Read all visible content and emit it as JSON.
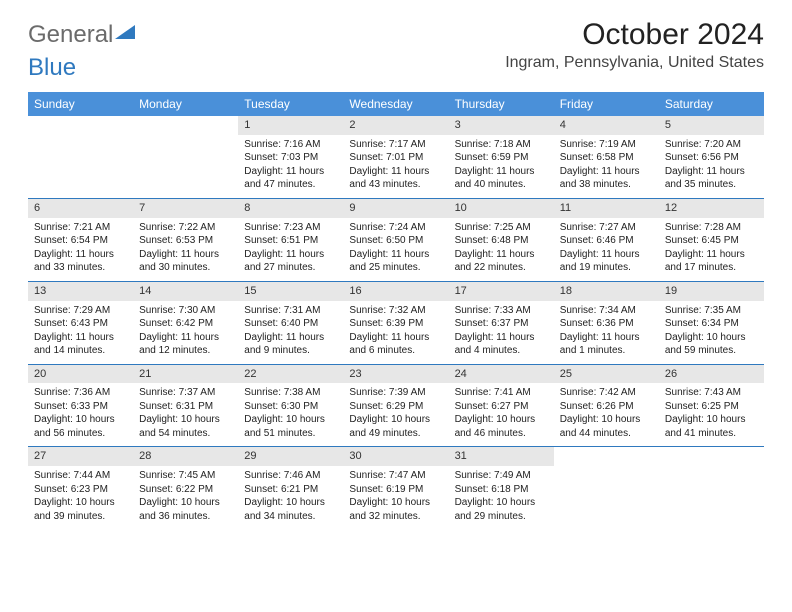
{
  "logo": {
    "part1": "General",
    "part2": "Blue"
  },
  "title": "October 2024",
  "location": "Ingram, Pennsylvania, United States",
  "colors": {
    "header_bg": "#4a90d9",
    "header_text": "#ffffff",
    "daynum_bg": "#e7e7e7",
    "week_border": "#2f79bf",
    "logo_gray": "#6b6b6b",
    "logo_blue": "#2f79bf",
    "text": "#222222",
    "background": "#ffffff"
  },
  "day_names": [
    "Sunday",
    "Monday",
    "Tuesday",
    "Wednesday",
    "Thursday",
    "Friday",
    "Saturday"
  ],
  "weeks": [
    [
      null,
      null,
      {
        "n": "1",
        "sr": "7:16 AM",
        "ss": "7:03 PM",
        "dh": "11",
        "dm": "47"
      },
      {
        "n": "2",
        "sr": "7:17 AM",
        "ss": "7:01 PM",
        "dh": "11",
        "dm": "43"
      },
      {
        "n": "3",
        "sr": "7:18 AM",
        "ss": "6:59 PM",
        "dh": "11",
        "dm": "40"
      },
      {
        "n": "4",
        "sr": "7:19 AM",
        "ss": "6:58 PM",
        "dh": "11",
        "dm": "38"
      },
      {
        "n": "5",
        "sr": "7:20 AM",
        "ss": "6:56 PM",
        "dh": "11",
        "dm": "35"
      }
    ],
    [
      {
        "n": "6",
        "sr": "7:21 AM",
        "ss": "6:54 PM",
        "dh": "11",
        "dm": "33"
      },
      {
        "n": "7",
        "sr": "7:22 AM",
        "ss": "6:53 PM",
        "dh": "11",
        "dm": "30"
      },
      {
        "n": "8",
        "sr": "7:23 AM",
        "ss": "6:51 PM",
        "dh": "11",
        "dm": "27"
      },
      {
        "n": "9",
        "sr": "7:24 AM",
        "ss": "6:50 PM",
        "dh": "11",
        "dm": "25"
      },
      {
        "n": "10",
        "sr": "7:25 AM",
        "ss": "6:48 PM",
        "dh": "11",
        "dm": "22"
      },
      {
        "n": "11",
        "sr": "7:27 AM",
        "ss": "6:46 PM",
        "dh": "11",
        "dm": "19"
      },
      {
        "n": "12",
        "sr": "7:28 AM",
        "ss": "6:45 PM",
        "dh": "11",
        "dm": "17"
      }
    ],
    [
      {
        "n": "13",
        "sr": "7:29 AM",
        "ss": "6:43 PM",
        "dh": "11",
        "dm": "14"
      },
      {
        "n": "14",
        "sr": "7:30 AM",
        "ss": "6:42 PM",
        "dh": "11",
        "dm": "12"
      },
      {
        "n": "15",
        "sr": "7:31 AM",
        "ss": "6:40 PM",
        "dh": "11",
        "dm": "9"
      },
      {
        "n": "16",
        "sr": "7:32 AM",
        "ss": "6:39 PM",
        "dh": "11",
        "dm": "6"
      },
      {
        "n": "17",
        "sr": "7:33 AM",
        "ss": "6:37 PM",
        "dh": "11",
        "dm": "4"
      },
      {
        "n": "18",
        "sr": "7:34 AM",
        "ss": "6:36 PM",
        "dh": "11",
        "dm": "1"
      },
      {
        "n": "19",
        "sr": "7:35 AM",
        "ss": "6:34 PM",
        "dh": "10",
        "dm": "59"
      }
    ],
    [
      {
        "n": "20",
        "sr": "7:36 AM",
        "ss": "6:33 PM",
        "dh": "10",
        "dm": "56"
      },
      {
        "n": "21",
        "sr": "7:37 AM",
        "ss": "6:31 PM",
        "dh": "10",
        "dm": "54"
      },
      {
        "n": "22",
        "sr": "7:38 AM",
        "ss": "6:30 PM",
        "dh": "10",
        "dm": "51"
      },
      {
        "n": "23",
        "sr": "7:39 AM",
        "ss": "6:29 PM",
        "dh": "10",
        "dm": "49"
      },
      {
        "n": "24",
        "sr": "7:41 AM",
        "ss": "6:27 PM",
        "dh": "10",
        "dm": "46"
      },
      {
        "n": "25",
        "sr": "7:42 AM",
        "ss": "6:26 PM",
        "dh": "10",
        "dm": "44"
      },
      {
        "n": "26",
        "sr": "7:43 AM",
        "ss": "6:25 PM",
        "dh": "10",
        "dm": "41"
      }
    ],
    [
      {
        "n": "27",
        "sr": "7:44 AM",
        "ss": "6:23 PM",
        "dh": "10",
        "dm": "39"
      },
      {
        "n": "28",
        "sr": "7:45 AM",
        "ss": "6:22 PM",
        "dh": "10",
        "dm": "36"
      },
      {
        "n": "29",
        "sr": "7:46 AM",
        "ss": "6:21 PM",
        "dh": "10",
        "dm": "34"
      },
      {
        "n": "30",
        "sr": "7:47 AM",
        "ss": "6:19 PM",
        "dh": "10",
        "dm": "32"
      },
      {
        "n": "31",
        "sr": "7:49 AM",
        "ss": "6:18 PM",
        "dh": "10",
        "dm": "29"
      },
      null,
      null
    ]
  ],
  "labels": {
    "sunrise": "Sunrise:",
    "sunset": "Sunset:",
    "daylight": "Daylight:",
    "hours": "hours",
    "and": "and",
    "minutes": "minutes."
  }
}
